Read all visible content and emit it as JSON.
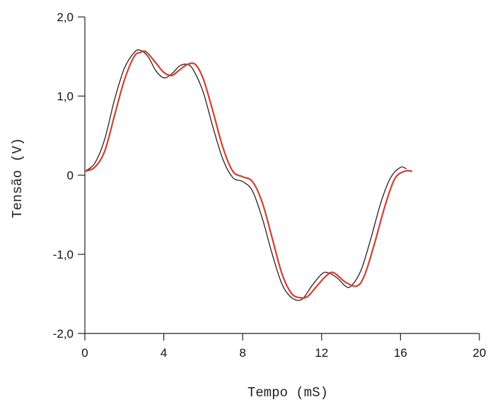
{
  "chart_data": {
    "type": "line",
    "title": "",
    "xlabel": "Tempo (mS)",
    "ylabel": "Tensão (V)",
    "xlim": [
      0,
      20
    ],
    "ylim": [
      -2,
      2
    ],
    "x_ticks": [
      0,
      4,
      8,
      12,
      16,
      20
    ],
    "x_tick_labels": [
      "0",
      "4",
      "8",
      "12",
      "16",
      "20"
    ],
    "y_ticks": [
      2,
      1,
      0,
      -1,
      -2
    ],
    "y_tick_labels": [
      "2,0",
      "1,0",
      "0",
      "-1,0",
      "-2,0"
    ],
    "grid": false,
    "legend": "none",
    "series": [
      {
        "color": "#222222",
        "x": [
          0,
          0.5,
          1.0,
          1.5,
          2.0,
          2.5,
          2.8,
          3.2,
          3.6,
          4.0,
          4.4,
          4.8,
          5.2,
          5.5,
          6.0,
          6.5,
          7.0,
          7.5,
          8.0,
          8.5,
          9.0,
          9.5,
          10.0,
          10.5,
          11.0,
          11.5,
          12.0,
          12.3,
          12.8,
          13.2,
          13.5,
          14.0,
          14.5,
          15.0,
          15.5,
          16.0,
          16.3
        ],
        "y": [
          0.05,
          0.15,
          0.45,
          0.95,
          1.35,
          1.55,
          1.58,
          1.5,
          1.32,
          1.23,
          1.28,
          1.38,
          1.4,
          1.33,
          1.05,
          0.6,
          0.2,
          -0.03,
          -0.08,
          -0.2,
          -0.55,
          -1.0,
          -1.38,
          -1.55,
          -1.57,
          -1.4,
          -1.25,
          -1.23,
          -1.3,
          -1.4,
          -1.4,
          -1.2,
          -0.8,
          -0.35,
          -0.03,
          0.1,
          0.08
        ]
      },
      {
        "color": "#d93b2b",
        "x": [
          0,
          0.5,
          1.0,
          1.5,
          2.0,
          2.5,
          2.8,
          3.1,
          3.6,
          4.0,
          4.4,
          4.8,
          5.2,
          5.6,
          6.0,
          6.5,
          7.0,
          7.5,
          8.0,
          8.5,
          9.0,
          9.5,
          10.0,
          10.5,
          11.0,
          11.3,
          11.6,
          12.2,
          12.6,
          13.2,
          13.8,
          14.2,
          14.7,
          15.2,
          15.7,
          16.2,
          16.6
        ],
        "y": [
          0.05,
          0.1,
          0.3,
          0.75,
          1.2,
          1.5,
          1.55,
          1.56,
          1.42,
          1.3,
          1.26,
          1.33,
          1.4,
          1.4,
          1.22,
          0.8,
          0.35,
          0.05,
          -0.02,
          -0.08,
          -0.35,
          -0.8,
          -1.25,
          -1.5,
          -1.55,
          -1.53,
          -1.45,
          -1.28,
          -1.23,
          -1.35,
          -1.4,
          -1.25,
          -0.85,
          -0.4,
          -0.05,
          0.05,
          0.05
        ]
      }
    ]
  }
}
